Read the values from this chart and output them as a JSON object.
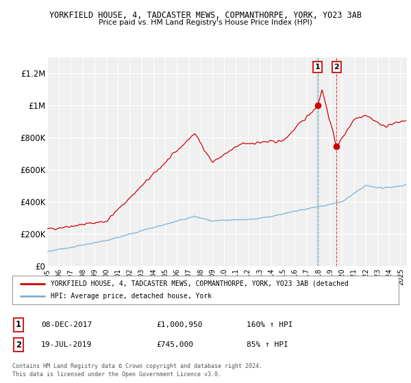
{
  "title1": "YORKFIELD HOUSE, 4, TADCASTER MEWS, COPMANTHORPE, YORK, YO23 3AB",
  "title2": "Price paid vs. HM Land Registry's House Price Index (HPI)",
  "ylabel_ticks": [
    "£0",
    "£200K",
    "£400K",
    "£600K",
    "£800K",
    "£1M",
    "£1.2M"
  ],
  "ytick_vals": [
    0,
    200000,
    400000,
    600000,
    800000,
    1000000,
    1200000
  ],
  "ylim": [
    0,
    1300000
  ],
  "xlim_start": 1995.0,
  "xlim_end": 2025.5,
  "legend_line1": "YORKFIELD HOUSE, 4, TADCASTER MEWS, COPMANTHORPE, YORK, YO23 3AB (detached",
  "legend_line2": "HPI: Average price, detached house, York",
  "line1_color": "#cc0000",
  "line2_color": "#7bafd4",
  "marker1_date": 2017.93,
  "marker1_price": 1000950,
  "marker2_date": 2019.54,
  "marker2_price": 745000,
  "footer1": "Contains HM Land Registry data © Crown copyright and database right 2024.",
  "footer2": "This data is licensed under the Open Government Licence v3.0.",
  "bg_color": "#ffffff",
  "plot_bg_color": "#f0f0f0",
  "grid_color": "#ffffff"
}
